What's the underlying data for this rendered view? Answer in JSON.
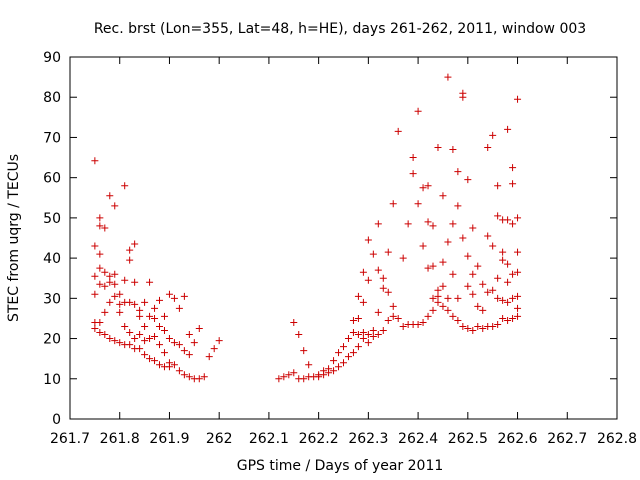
{
  "chart_data": {
    "type": "scatter",
    "title": "Rec. brst (Lon=355, Lat=48, h=HE), days 261-262, 2011, window 003",
    "xlabel": "GPS time / Days of year 2011",
    "ylabel": "STEC from uqrg / TECUs",
    "xlim": [
      261.7,
      262.8
    ],
    "ylim": [
      0,
      90
    ],
    "x_ticks": [
      "261.7",
      "261.8",
      "261.9",
      "262",
      "262.1",
      "262.2",
      "262.3",
      "262.4",
      "262.5",
      "262.6",
      "262.7",
      "262.8"
    ],
    "y_ticks": [
      "0",
      "10",
      "20",
      "30",
      "40",
      "50",
      "60",
      "70",
      "80",
      "90"
    ],
    "grid": false,
    "marker": "+",
    "color": "#cc0000",
    "series": [
      {
        "points": [
          [
            261.75,
            64.2
          ],
          [
            261.75,
            43.0
          ],
          [
            261.75,
            35.5
          ],
          [
            261.75,
            31.0
          ],
          [
            261.75,
            24.0
          ],
          [
            261.75,
            22.5
          ],
          [
            261.76,
            50.0
          ],
          [
            261.76,
            48.0
          ],
          [
            261.76,
            41.0
          ],
          [
            261.76,
            37.5
          ],
          [
            261.76,
            33.5
          ],
          [
            261.76,
            24.0
          ],
          [
            261.76,
            21.5
          ],
          [
            261.77,
            47.5
          ],
          [
            261.77,
            36.5
          ],
          [
            261.77,
            33.0
          ],
          [
            261.77,
            26.5
          ],
          [
            261.77,
            21.0
          ],
          [
            261.78,
            55.5
          ],
          [
            261.78,
            35.5
          ],
          [
            261.78,
            34.0
          ],
          [
            261.78,
            29.0
          ],
          [
            261.78,
            20.0
          ],
          [
            261.79,
            53.0
          ],
          [
            261.79,
            36.0
          ],
          [
            261.79,
            33.5
          ],
          [
            261.79,
            30.5
          ],
          [
            261.79,
            19.5
          ],
          [
            261.8,
            31.0
          ],
          [
            261.8,
            28.5
          ],
          [
            261.8,
            26.5
          ],
          [
            261.8,
            19.0
          ],
          [
            261.81,
            58.0
          ],
          [
            261.81,
            34.5
          ],
          [
            261.81,
            29.0
          ],
          [
            261.81,
            23.0
          ],
          [
            261.81,
            18.5
          ],
          [
            261.82,
            42.0
          ],
          [
            261.82,
            39.5
          ],
          [
            261.82,
            29.0
          ],
          [
            261.82,
            21.5
          ],
          [
            261.82,
            18.5
          ],
          [
            261.83,
            43.5
          ],
          [
            261.83,
            34.0
          ],
          [
            261.83,
            28.5
          ],
          [
            261.83,
            20.0
          ],
          [
            261.83,
            17.5
          ],
          [
            261.84,
            27.0
          ],
          [
            261.84,
            25.5
          ],
          [
            261.84,
            21.0
          ],
          [
            261.84,
            17.5
          ],
          [
            261.85,
            29.0
          ],
          [
            261.85,
            23.0
          ],
          [
            261.85,
            19.5
          ],
          [
            261.85,
            16.0
          ],
          [
            261.86,
            34.0
          ],
          [
            261.86,
            25.5
          ],
          [
            261.86,
            20.0
          ],
          [
            261.86,
            15.0
          ],
          [
            261.87,
            27.5
          ],
          [
            261.87,
            25.0
          ],
          [
            261.87,
            20.5
          ],
          [
            261.87,
            14.5
          ],
          [
            261.88,
            29.5
          ],
          [
            261.88,
            23.0
          ],
          [
            261.88,
            18.5
          ],
          [
            261.88,
            13.5
          ],
          [
            261.89,
            25.5
          ],
          [
            261.89,
            22.0
          ],
          [
            261.89,
            16.5
          ],
          [
            261.89,
            13.0
          ],
          [
            261.9,
            31.0
          ],
          [
            261.9,
            20.0
          ],
          [
            261.9,
            14.0
          ],
          [
            261.9,
            13.0
          ],
          [
            261.91,
            30.0
          ],
          [
            261.91,
            19.0
          ],
          [
            261.91,
            13.5
          ],
          [
            261.92,
            27.5
          ],
          [
            261.92,
            18.5
          ],
          [
            261.92,
            12.0
          ],
          [
            261.93,
            30.5
          ],
          [
            261.93,
            17.0
          ],
          [
            261.93,
            11.0
          ],
          [
            261.94,
            21.0
          ],
          [
            261.94,
            16.0
          ],
          [
            261.94,
            10.5
          ],
          [
            261.95,
            19.0
          ],
          [
            261.95,
            10.0
          ],
          [
            261.96,
            22.5
          ],
          [
            261.96,
            10.0
          ],
          [
            261.97,
            10.5
          ],
          [
            261.98,
            15.5
          ],
          [
            261.99,
            17.5
          ],
          [
            262.0,
            19.5
          ],
          [
            262.12,
            10.0
          ],
          [
            262.13,
            10.5
          ],
          [
            262.14,
            11.0
          ],
          [
            262.15,
            11.5
          ],
          [
            262.15,
            24.0
          ],
          [
            262.16,
            21.0
          ],
          [
            262.16,
            10.0
          ],
          [
            262.17,
            17.0
          ],
          [
            262.17,
            10.0
          ],
          [
            262.18,
            13.5
          ],
          [
            262.18,
            10.5
          ],
          [
            262.19,
            10.5
          ],
          [
            262.2,
            11.0
          ],
          [
            262.2,
            10.5
          ],
          [
            262.21,
            12.0
          ],
          [
            262.21,
            11.0
          ],
          [
            262.22,
            12.5
          ],
          [
            262.22,
            11.5
          ],
          [
            262.23,
            14.5
          ],
          [
            262.23,
            12.0
          ],
          [
            262.24,
            16.5
          ],
          [
            262.24,
            13.0
          ],
          [
            262.25,
            18.0
          ],
          [
            262.25,
            14.0
          ],
          [
            262.26,
            20.0
          ],
          [
            262.26,
            15.5
          ],
          [
            262.27,
            24.5
          ],
          [
            262.27,
            21.5
          ],
          [
            262.27,
            16.5
          ],
          [
            262.28,
            30.5
          ],
          [
            262.28,
            25.0
          ],
          [
            262.28,
            21.0
          ],
          [
            262.28,
            18.0
          ],
          [
            262.29,
            36.5
          ],
          [
            262.29,
            29.0
          ],
          [
            262.29,
            21.5
          ],
          [
            262.29,
            20.0
          ],
          [
            262.3,
            44.5
          ],
          [
            262.3,
            34.5
          ],
          [
            262.3,
            21.0
          ],
          [
            262.3,
            19.0
          ],
          [
            262.31,
            41.0
          ],
          [
            262.31,
            22.0
          ],
          [
            262.31,
            20.5
          ],
          [
            262.32,
            48.5
          ],
          [
            262.32,
            37.0
          ],
          [
            262.32,
            26.5
          ],
          [
            262.32,
            21.0
          ],
          [
            262.33,
            35.0
          ],
          [
            262.33,
            32.5
          ],
          [
            262.33,
            22.0
          ],
          [
            262.34,
            41.5
          ],
          [
            262.34,
            31.5
          ],
          [
            262.34,
            24.5
          ],
          [
            262.35,
            53.5
          ],
          [
            262.35,
            28.0
          ],
          [
            262.35,
            25.5
          ],
          [
            262.36,
            71.5
          ],
          [
            262.36,
            25.0
          ],
          [
            262.37,
            40.0
          ],
          [
            262.37,
            23.0
          ],
          [
            262.38,
            48.5
          ],
          [
            262.38,
            23.5
          ],
          [
            262.39,
            65.0
          ],
          [
            262.39,
            61.0
          ],
          [
            262.39,
            23.5
          ],
          [
            262.4,
            76.5
          ],
          [
            262.4,
            53.5
          ],
          [
            262.4,
            23.5
          ],
          [
            262.41,
            57.5
          ],
          [
            262.41,
            43.0
          ],
          [
            262.41,
            24.0
          ],
          [
            262.42,
            58.0
          ],
          [
            262.42,
            49.0
          ],
          [
            262.42,
            37.5
          ],
          [
            262.42,
            25.5
          ],
          [
            262.43,
            48.0
          ],
          [
            262.43,
            38.0
          ],
          [
            262.43,
            30.0
          ],
          [
            262.43,
            27.0
          ],
          [
            262.44,
            67.5
          ],
          [
            262.44,
            32.0
          ],
          [
            262.44,
            30.5
          ],
          [
            262.44,
            29.0
          ],
          [
            262.45,
            55.5
          ],
          [
            262.45,
            39.0
          ],
          [
            262.45,
            33.0
          ],
          [
            262.45,
            28.0
          ],
          [
            262.46,
            85.0
          ],
          [
            262.46,
            44.0
          ],
          [
            262.46,
            30.0
          ],
          [
            262.46,
            27.0
          ],
          [
            262.47,
            67.0
          ],
          [
            262.47,
            48.5
          ],
          [
            262.47,
            36.0
          ],
          [
            262.47,
            25.5
          ],
          [
            262.48,
            61.5
          ],
          [
            262.48,
            53.0
          ],
          [
            262.48,
            30.0
          ],
          [
            262.48,
            24.5
          ],
          [
            262.49,
            81.0
          ],
          [
            262.49,
            80.0
          ],
          [
            262.49,
            45.0
          ],
          [
            262.49,
            23.0
          ],
          [
            262.5,
            59.5
          ],
          [
            262.5,
            40.5
          ],
          [
            262.5,
            33.0
          ],
          [
            262.5,
            22.5
          ],
          [
            262.51,
            47.5
          ],
          [
            262.51,
            36.0
          ],
          [
            262.51,
            31.0
          ],
          [
            262.51,
            22.0
          ],
          [
            262.52,
            38.0
          ],
          [
            262.52,
            28.0
          ],
          [
            262.52,
            23.0
          ],
          [
            262.53,
            33.5
          ],
          [
            262.53,
            27.0
          ],
          [
            262.53,
            22.5
          ],
          [
            262.54,
            67.5
          ],
          [
            262.54,
            45.5
          ],
          [
            262.54,
            31.5
          ],
          [
            262.54,
            23.0
          ],
          [
            262.55,
            70.5
          ],
          [
            262.55,
            43.0
          ],
          [
            262.55,
            32.0
          ],
          [
            262.55,
            23.0
          ],
          [
            262.56,
            58.0
          ],
          [
            262.56,
            50.5
          ],
          [
            262.56,
            35.0
          ],
          [
            262.56,
            30.0
          ],
          [
            262.56,
            23.5
          ],
          [
            262.57,
            49.5
          ],
          [
            262.57,
            41.5
          ],
          [
            262.57,
            39.5
          ],
          [
            262.57,
            29.5
          ],
          [
            262.57,
            25.0
          ],
          [
            262.58,
            72.0
          ],
          [
            262.58,
            49.5
          ],
          [
            262.58,
            38.5
          ],
          [
            262.58,
            34.0
          ],
          [
            262.58,
            29.0
          ],
          [
            262.58,
            24.5
          ],
          [
            262.59,
            62.5
          ],
          [
            262.59,
            58.5
          ],
          [
            262.59,
            48.5
          ],
          [
            262.59,
            36.0
          ],
          [
            262.59,
            30.0
          ],
          [
            262.59,
            25.0
          ],
          [
            262.6,
            79.5
          ],
          [
            262.6,
            50.0
          ],
          [
            262.6,
            41.5
          ],
          [
            262.6,
            36.5
          ],
          [
            262.6,
            30.5
          ],
          [
            262.6,
            27.5
          ],
          [
            262.6,
            25.5
          ]
        ]
      }
    ]
  }
}
